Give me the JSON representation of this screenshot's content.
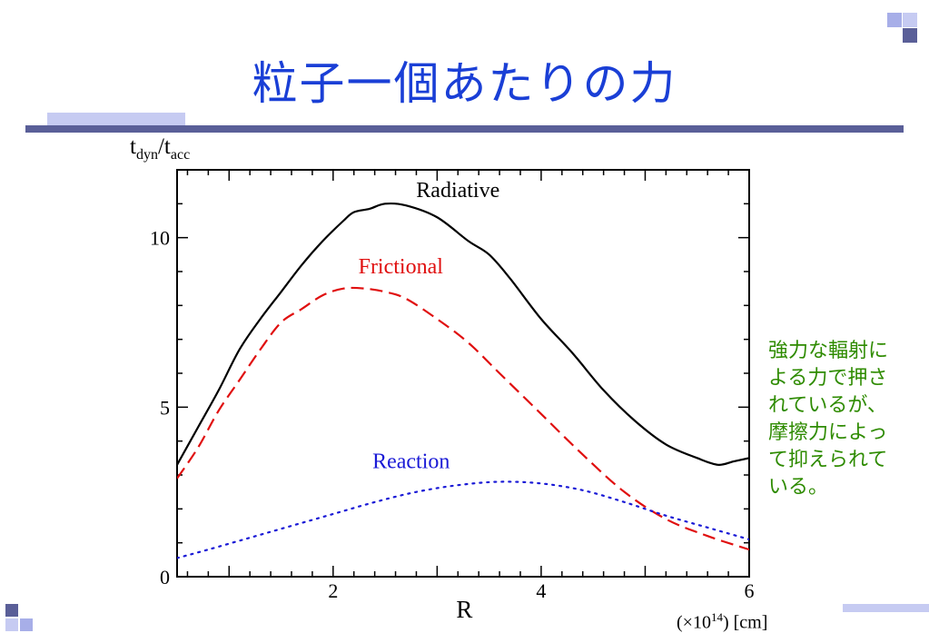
{
  "slide": {
    "title": "粒子一個あたりの力",
    "side_note": "強力な輻射による力で押されているが、摩擦力によって抑えられている。"
  },
  "colors": {
    "title": "#1a3fd6",
    "decor_light": "#c6cbf2",
    "decor_dark": "#5a5f98",
    "note": "#2e8b00"
  },
  "chart_data": {
    "type": "line",
    "xlabel": "R",
    "x_unit": {
      "prefix": "(×10",
      "exp": "14",
      "suffix": ") [cm]"
    },
    "ylabel": {
      "base": "t",
      "sub1": "dyn",
      "sep": "/t",
      "sub2": "acc"
    },
    "xlim": [
      0.5,
      6
    ],
    "ylim": [
      0,
      12
    ],
    "xticks": [
      2,
      4,
      6
    ],
    "yticks": [
      0,
      5,
      10
    ],
    "grid": false,
    "series": [
      {
        "name": "Radiative",
        "color": "#000000",
        "style": "solid",
        "points": [
          [
            0.5,
            3.3
          ],
          [
            0.7,
            4.4
          ],
          [
            0.9,
            5.5
          ],
          [
            1.1,
            6.7
          ],
          [
            1.3,
            7.6
          ],
          [
            1.5,
            8.4
          ],
          [
            1.7,
            9.2
          ],
          [
            1.9,
            9.9
          ],
          [
            2.1,
            10.5
          ],
          [
            2.2,
            10.75
          ],
          [
            2.35,
            10.85
          ],
          [
            2.5,
            11.0
          ],
          [
            2.7,
            10.95
          ],
          [
            3.0,
            10.6
          ],
          [
            3.3,
            9.9
          ],
          [
            3.5,
            9.5
          ],
          [
            3.7,
            8.8
          ],
          [
            4.0,
            7.6
          ],
          [
            4.3,
            6.6
          ],
          [
            4.6,
            5.5
          ],
          [
            4.9,
            4.6
          ],
          [
            5.2,
            3.9
          ],
          [
            5.5,
            3.5
          ],
          [
            5.7,
            3.3
          ],
          [
            5.85,
            3.4
          ],
          [
            6.0,
            3.5
          ]
        ]
      },
      {
        "name": "Frictional",
        "color": "#e01010",
        "style": "dashed",
        "points": [
          [
            0.5,
            2.9
          ],
          [
            0.7,
            3.8
          ],
          [
            0.9,
            4.9
          ],
          [
            1.1,
            5.8
          ],
          [
            1.3,
            6.7
          ],
          [
            1.5,
            7.5
          ],
          [
            1.7,
            7.9
          ],
          [
            1.9,
            8.3
          ],
          [
            2.1,
            8.5
          ],
          [
            2.3,
            8.5
          ],
          [
            2.5,
            8.4
          ],
          [
            2.7,
            8.2
          ],
          [
            3.0,
            7.6
          ],
          [
            3.3,
            6.9
          ],
          [
            3.6,
            6.0
          ],
          [
            4.0,
            4.8
          ],
          [
            4.4,
            3.6
          ],
          [
            4.8,
            2.5
          ],
          [
            5.2,
            1.7
          ],
          [
            5.6,
            1.2
          ],
          [
            6.0,
            0.8
          ]
        ]
      },
      {
        "name": "Reaction",
        "color": "#1a1ad6",
        "style": "dotted",
        "points": [
          [
            0.5,
            0.55
          ],
          [
            0.8,
            0.8
          ],
          [
            1.2,
            1.15
          ],
          [
            1.6,
            1.5
          ],
          [
            2.0,
            1.85
          ],
          [
            2.4,
            2.2
          ],
          [
            2.8,
            2.5
          ],
          [
            3.2,
            2.7
          ],
          [
            3.6,
            2.8
          ],
          [
            4.0,
            2.75
          ],
          [
            4.4,
            2.55
          ],
          [
            4.8,
            2.2
          ],
          [
            5.2,
            1.8
          ],
          [
            5.6,
            1.45
          ],
          [
            6.0,
            1.1
          ]
        ]
      }
    ],
    "annotations": [
      {
        "text": "Radiative",
        "x": 3.2,
        "y": 11.2,
        "color": "#000000"
      },
      {
        "text": "Frictional",
        "x": 2.65,
        "y": 8.95,
        "color": "#e01010"
      },
      {
        "text": "Reaction",
        "x": 2.75,
        "y": 3.2,
        "color": "#1a1ad6"
      }
    ]
  }
}
